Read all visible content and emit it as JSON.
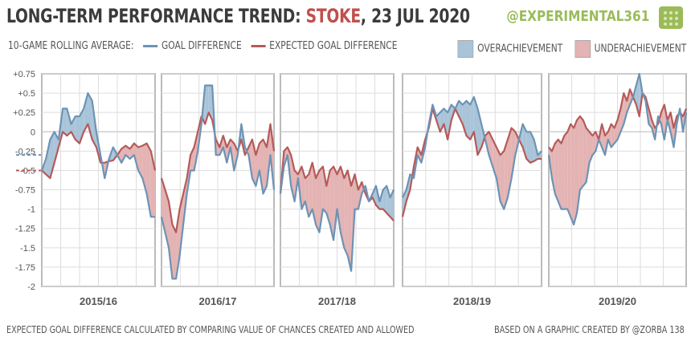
{
  "header": {
    "title_prefix": "LONG-TERM PERFORMANCE TREND: ",
    "team": "STOKE",
    "title_suffix": ", 23 JUL 2020",
    "handle": "@EXPERIMENTAL361"
  },
  "legend": {
    "label": "10-GAME ROLLING AVERAGE:",
    "series1": "GOAL DIFFERENCE",
    "series2": "EXPECTED GOAL DIFFERENCE",
    "over": "OVERACHIEVEMENT",
    "under": "UNDERACHIEVEMENT"
  },
  "footer": {
    "left": "EXPECTED GOAL DIFFERENCE CALCULATED BY COMPARING VALUE OF CHANCES CREATED AND ALLOWED",
    "right": "BASED ON A GRAPHIC CREATED BY @ZORBA 138"
  },
  "colors": {
    "gd": "#6d93b5",
    "xgd": "#b55a5a",
    "over_fill": "#a9c4d8",
    "under_fill": "#e4b3b3",
    "grid": "#dddddd",
    "frame": "#bbbbbb"
  },
  "chart_data": {
    "type": "line",
    "title": "LONG-TERM PERFORMANCE TREND: STOKE, 23 JUL 2020",
    "ylabel": "10-game rolling average",
    "ylim": [
      -2,
      0.75
    ],
    "yticks": [
      0.75,
      0.5,
      0.25,
      0,
      -0.25,
      -0.5,
      -0.75,
      -1,
      -1.25,
      -1.5,
      -1.75,
      -2
    ],
    "ytick_labels": [
      "+0.75",
      "+0.5",
      "+0.25",
      "0",
      "-0.25",
      "-0.5",
      "-0.75",
      "-1",
      "-1.25",
      "-1.5",
      "-1.75",
      "-2"
    ],
    "lead_in": {
      "gd": -0.3,
      "xgd": -0.5
    },
    "panels": [
      {
        "season": "2015/16",
        "gd": [
          -0.5,
          -0.35,
          -0.1,
          0.0,
          -0.1,
          0.3,
          0.3,
          0.1,
          0.2,
          0.2,
          0.3,
          0.5,
          0.4,
          0.0,
          -0.3,
          -0.6,
          -0.35,
          -0.2,
          -0.3,
          -0.4,
          -0.3,
          -0.35,
          -0.3,
          -0.5,
          -0.6,
          -0.8,
          -1.1,
          -1.1
        ],
        "xgd": [
          -0.5,
          -0.55,
          -0.6,
          -0.4,
          -0.2,
          0.0,
          -0.05,
          0.0,
          -0.1,
          -0.15,
          0.0,
          0.1,
          -0.1,
          -0.2,
          -0.4,
          -0.4,
          -0.38,
          -0.37,
          -0.3,
          -0.22,
          -0.18,
          -0.22,
          -0.15,
          -0.2,
          -0.18,
          -0.15,
          -0.25,
          -0.5
        ]
      },
      {
        "season": "2016/17",
        "gd": [
          -1.1,
          -1.3,
          -1.5,
          -1.9,
          -1.9,
          -1.6,
          -1.2,
          -0.8,
          -0.5,
          -0.5,
          -0.25,
          0.1,
          0.6,
          0.6,
          0.6,
          -0.3,
          -0.3,
          -0.2,
          -0.4,
          -0.2,
          -0.5,
          -0.3,
          0.1,
          -0.2,
          -0.3,
          -0.6,
          -0.7,
          -0.5,
          -0.8,
          -0.7,
          -0.3,
          -0.75
        ],
        "xgd": [
          -0.6,
          -0.75,
          -0.9,
          -1.2,
          -1.3,
          -1.0,
          -0.8,
          -0.6,
          -0.3,
          -0.2,
          0.0,
          0.2,
          0.1,
          0.25,
          0.15,
          -0.1,
          -0.2,
          -0.05,
          -0.2,
          -0.1,
          -0.15,
          -0.25,
          -0.1,
          -0.3,
          -0.2,
          -0.1,
          -0.3,
          -0.15,
          -0.1,
          -0.2,
          0.1,
          -0.25
        ]
      },
      {
        "season": "2017/18",
        "gd": [
          -0.8,
          -0.45,
          -0.3,
          -0.7,
          -0.9,
          -0.6,
          -1.0,
          -0.9,
          -1.1,
          -1.0,
          -1.2,
          -1.3,
          -1.0,
          -1.05,
          -1.2,
          -1.4,
          -1.0,
          -1.3,
          -1.5,
          -1.6,
          -1.8,
          -1.0,
          -1.0,
          -0.8,
          -0.7,
          -0.9,
          -0.8,
          -0.7,
          -0.9,
          -0.75,
          -0.7,
          -0.85,
          -0.75
        ],
        "xgd": [
          -0.8,
          -0.25,
          -0.2,
          -0.3,
          -0.5,
          -0.55,
          -0.45,
          -0.6,
          -0.55,
          -0.4,
          -0.6,
          -0.5,
          -0.45,
          -0.7,
          -0.5,
          -0.45,
          -0.55,
          -0.45,
          -0.6,
          -0.5,
          -0.7,
          -0.55,
          -0.75,
          -0.65,
          -0.8,
          -0.9,
          -0.85,
          -0.95,
          -1.0,
          -1.0,
          -1.05,
          -1.1,
          -1.15
        ]
      },
      {
        "season": "2018/19",
        "gd": [
          -0.85,
          -0.75,
          -0.55,
          -0.6,
          -0.3,
          -0.4,
          -0.2,
          0.1,
          0.35,
          0.2,
          0.25,
          0.3,
          0.25,
          0.35,
          0.3,
          0.4,
          0.35,
          0.4,
          0.35,
          0.45,
          0.3,
          0.1,
          -0.1,
          -0.3,
          -0.45,
          -0.6,
          -0.9,
          -1.0,
          -0.85,
          -0.6,
          -0.3,
          -0.1,
          0.1,
          0.0,
          0.0,
          -0.1,
          -0.3,
          -0.25
        ],
        "xgd": [
          -1.1,
          -0.9,
          -0.75,
          -0.45,
          -0.2,
          -0.3,
          -0.1,
          0.05,
          0.3,
          0.15,
          0.0,
          0.1,
          -0.1,
          0.15,
          0.3,
          0.2,
          0.1,
          -0.05,
          -0.1,
          0.0,
          -0.3,
          -0.2,
          -0.05,
          0.0,
          -0.1,
          -0.2,
          -0.3,
          -0.25,
          -0.1,
          0.05,
          0.0,
          -0.1,
          -0.2,
          -0.35,
          -0.4,
          -0.38,
          -0.35,
          -0.35
        ]
      },
      {
        "season": "2019/20",
        "gd": [
          -0.3,
          -0.6,
          -0.8,
          -0.9,
          -1.0,
          -1.0,
          -1.0,
          -1.1,
          -1.2,
          -1.05,
          -0.75,
          -0.7,
          -0.65,
          -0.4,
          -0.3,
          -0.25,
          -0.1,
          -0.2,
          -0.3,
          -0.1,
          -0.2,
          -0.15,
          -0.1,
          0.0,
          0.1,
          0.25,
          0.35,
          0.45,
          0.6,
          0.75,
          0.5,
          0.4,
          0.1,
          0.05,
          -0.1,
          0.2,
          0.1,
          -0.1,
          0.15,
          0.0,
          -0.2,
          0.1,
          0.3,
          0.0,
          0.25
        ],
        "xgd": [
          -0.2,
          -0.25,
          -0.15,
          -0.1,
          -0.15,
          -0.05,
          0.0,
          0.1,
          0.05,
          0.15,
          0.2,
          0.15,
          0.05,
          0.0,
          -0.05,
          0.0,
          -0.1,
          0.1,
          -0.05,
          0.0,
          0.1,
          0.05,
          0.15,
          0.3,
          0.5,
          0.4,
          0.55,
          0.45,
          0.35,
          0.2,
          0.5,
          0.45,
          0.3,
          0.15,
          0.05,
          0.1,
          0.25,
          0.35,
          0.15,
          0.25,
          0.05,
          0.2,
          0.25,
          0.2,
          0.3
        ]
      }
    ]
  }
}
